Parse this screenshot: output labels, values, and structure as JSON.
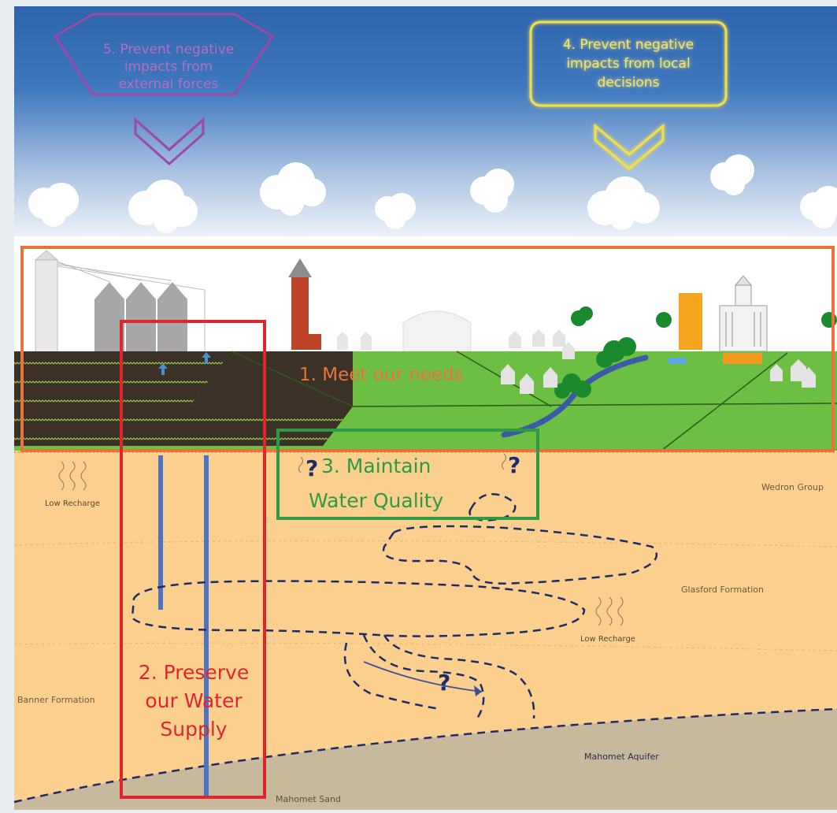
{
  "goals": {
    "g1": "1. Meet our needs",
    "g2_l1": "2. Preserve",
    "g2_l2": "our Water",
    "g2_l3": "Supply",
    "g3_l1": "3. Maintain",
    "g3_l2": "Water Quality",
    "g4_l1": "4. Prevent negative",
    "g4_l2": "impacts from local",
    "g4_l3": "decisions",
    "g5_l1": "5. Prevent negative",
    "g5_l2": "impacts from",
    "g5_l3": "external forces"
  },
  "layers": {
    "wedron": "Wedron Group",
    "glasford": "Glasford Formation",
    "banner": "Banner Formation",
    "mahomet_aquifer": "Mahomet Aquifer",
    "mahomet_sand": "Mahomet Sand"
  },
  "recharge": {
    "left": "Low Recharge",
    "center": "Low Recharge"
  },
  "symbols": {
    "question": "?"
  },
  "colors": {
    "goal1": "#e8743a",
    "goal2": "#e0262b",
    "goal3": "#2e9a45",
    "goal4": "#f3e04a",
    "goal5": "#9a4aa8",
    "soil": "#fbd08e",
    "sand": "#c9b99c",
    "grass": "#6dbf44",
    "dashed": "#1d2a6b"
  }
}
